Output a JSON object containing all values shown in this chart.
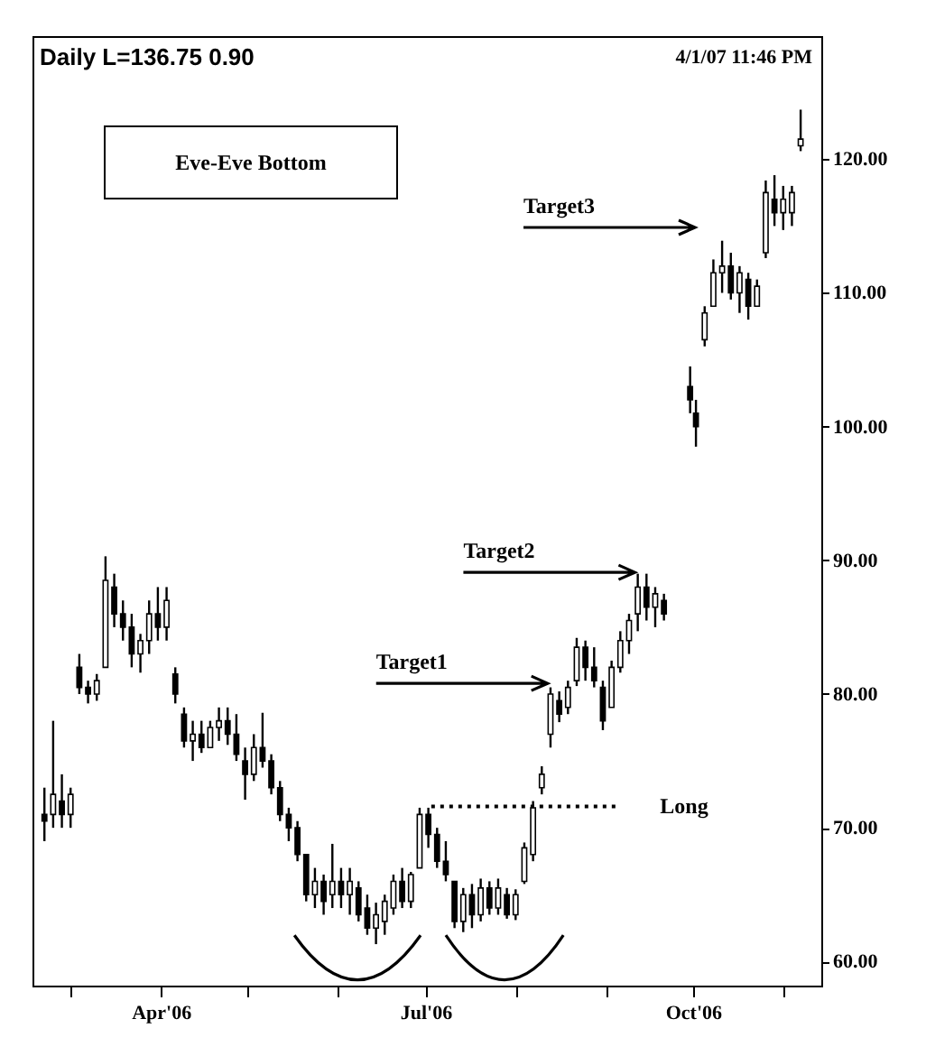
{
  "chart_data": {
    "type": "candlestick",
    "title": "Daily  L=136.75  0.90",
    "color": "#000000",
    "annotations": [
      "4/1/07 11:46 PM",
      "Eve-Eve Bottom",
      {
        "text": "Target1",
        "x": "2006-08-12",
        "y": 80.8
      },
      {
        "text": "Target2",
        "x": "2006-09-11",
        "y": 89.1
      },
      "Target3"
    ],
    "x": [
      "2006-02-20",
      "2006-02-23",
      "2006-02-26",
      "2006-03-01",
      "2006-03-04",
      "2006-03-07",
      "2006-03-10",
      "2006-03-13",
      "2006-03-16",
      "2006-03-19",
      "2006-03-22",
      "2006-03-25",
      "2006-03-28",
      "2006-03-31",
      "2006-04-03",
      "2006-04-06",
      "2006-04-09",
      "2006-04-12",
      "2006-04-15",
      "2006-04-18",
      "2006-04-21",
      "2006-04-24",
      "2006-04-27",
      "2006-04-30",
      "2006-05-03",
      "2006-05-06",
      "2006-05-09",
      "2006-05-12",
      "2006-05-15",
      "2006-05-18",
      "2006-05-21",
      "2006-05-24",
      "2006-05-27",
      "2006-05-30",
      "2006-06-02",
      "2006-06-05",
      "2006-06-08",
      "2006-06-11",
      "2006-06-14",
      "2006-06-17",
      "2006-06-20",
      "2006-06-23",
      "2006-06-26",
      "2006-06-29",
      "2006-07-02",
      "2006-07-05",
      "2006-07-08",
      "2006-07-11",
      "2006-07-14",
      "2006-07-17",
      "2006-07-20",
      "2006-07-23",
      "2006-07-26",
      "2006-07-29",
      "2006-08-01",
      "2006-08-04",
      "2006-08-07",
      "2006-08-10",
      "2006-08-13",
      "2006-08-16",
      "2006-08-19",
      "2006-08-22",
      "2006-08-25",
      "2006-08-28",
      "2006-08-31",
      "2006-09-03",
      "2006-09-06",
      "2006-09-09",
      "2006-09-12",
      "2006-09-15",
      "2006-09-18",
      "2006-09-21",
      "2006-09-30",
      "2006-10-02",
      "2006-10-05",
      "2006-10-08",
      "2006-10-11",
      "2006-10-14",
      "2006-10-17",
      "2006-10-20",
      "2006-10-23",
      "2006-10-26",
      "2006-10-29",
      "2006-11-01",
      "2006-11-04",
      "2006-11-07"
    ],
    "ohlc": [
      [
        71,
        73,
        69,
        70.5
      ],
      [
        71,
        78,
        70,
        72.5
      ],
      [
        72,
        74,
        70,
        71
      ],
      [
        71,
        73,
        70,
        72.5
      ],
      [
        82,
        83,
        80,
        80.5
      ],
      [
        80.5,
        81,
        79.3,
        80
      ],
      [
        80,
        81.5,
        79.5,
        81
      ],
      [
        82,
        90.3,
        82,
        88.5
      ],
      [
        88,
        89,
        85,
        86
      ],
      [
        86,
        87,
        84,
        85
      ],
      [
        85,
        86,
        82,
        83
      ],
      [
        83,
        84.5,
        81.6,
        84
      ],
      [
        84,
        87,
        83,
        86
      ],
      [
        86,
        88,
        84,
        85
      ],
      [
        85,
        88,
        84,
        87
      ],
      [
        81.5,
        82,
        79.3,
        80
      ],
      [
        78.5,
        79,
        76,
        76.5
      ],
      [
        76.5,
        78,
        75,
        77
      ],
      [
        77,
        78,
        75.6,
        76
      ],
      [
        76,
        78,
        76,
        77.5
      ],
      [
        77.5,
        79,
        76.5,
        78
      ],
      [
        78,
        79,
        76.2,
        77
      ],
      [
        77,
        78.5,
        75,
        75.5
      ],
      [
        75,
        76,
        72.1,
        74
      ],
      [
        74,
        77,
        73.5,
        76
      ],
      [
        76,
        78.6,
        74.5,
        75
      ],
      [
        75,
        75.5,
        72.5,
        73
      ],
      [
        73,
        73.5,
        70.5,
        71
      ],
      [
        71,
        71.5,
        69,
        70
      ],
      [
        70,
        70.5,
        67.5,
        68
      ],
      [
        68,
        68,
        64.5,
        65
      ],
      [
        65,
        67,
        64,
        66
      ],
      [
        66,
        66.5,
        63.5,
        64.5
      ],
      [
        65,
        68.8,
        64,
        66
      ],
      [
        66,
        67,
        64,
        65
      ],
      [
        65,
        67,
        63.5,
        66
      ],
      [
        65.5,
        66,
        63,
        63.5
      ],
      [
        64,
        65,
        62,
        62.5
      ],
      [
        62.5,
        64.4,
        61.3,
        63.5
      ],
      [
        63,
        65,
        62,
        64.5
      ],
      [
        64,
        66.5,
        63.5,
        66
      ],
      [
        66,
        67,
        64,
        64.5
      ],
      [
        64.5,
        66.7,
        64,
        66.5
      ],
      [
        67,
        71.5,
        67,
        71
      ],
      [
        71,
        71.5,
        68.5,
        69.5
      ],
      [
        69.5,
        70,
        67,
        67.5
      ],
      [
        67.5,
        69,
        66,
        66.5
      ],
      [
        66,
        66,
        62.5,
        63
      ],
      [
        63,
        65.5,
        62.2,
        65
      ],
      [
        65,
        65.8,
        62.5,
        63.5
      ],
      [
        63.5,
        66.2,
        63,
        65.5
      ],
      [
        65.5,
        66,
        63.5,
        64
      ],
      [
        64,
        66.2,
        63.5,
        65.5
      ],
      [
        65,
        65.5,
        63.2,
        63.5
      ],
      [
        63.5,
        65.4,
        63.1,
        65
      ],
      [
        66,
        68.9,
        65.8,
        68.5
      ],
      [
        68,
        72,
        67.5,
        71.5
      ],
      [
        73,
        74.6,
        72.5,
        74
      ],
      [
        77,
        80.5,
        76,
        80
      ],
      [
        79.5,
        80.2,
        77.9,
        78.5
      ],
      [
        79,
        81,
        78.5,
        80.5
      ],
      [
        81,
        84.2,
        80.6,
        83.5
      ],
      [
        83.5,
        84,
        81,
        82
      ],
      [
        82,
        83.5,
        80.5,
        81
      ],
      [
        80.5,
        81,
        77.3,
        78
      ],
      [
        79,
        82.5,
        79,
        82
      ],
      [
        82,
        84.7,
        81.6,
        84
      ],
      [
        84,
        86,
        83,
        85.5
      ],
      [
        86,
        89,
        84.7,
        88
      ],
      [
        88,
        89,
        85.5,
        86.5
      ],
      [
        86.5,
        88,
        85,
        87.5
      ],
      [
        87,
        87.5,
        85.5,
        86
      ],
      [
        103,
        104.5,
        101,
        102
      ],
      [
        101,
        102,
        98.5,
        100
      ],
      [
        106.5,
        109,
        106,
        108.5
      ],
      [
        109,
        112.5,
        109,
        111.5
      ],
      [
        111.5,
        113.9,
        110,
        112
      ],
      [
        112,
        113,
        109.5,
        110
      ],
      [
        110,
        112,
        108.5,
        111.5
      ],
      [
        111,
        111.5,
        108,
        109
      ],
      [
        109,
        111,
        109,
        110.5
      ],
      [
        113,
        118.4,
        112.6,
        117.5
      ],
      [
        117,
        118.8,
        115,
        116
      ],
      [
        116,
        118,
        114.7,
        117
      ],
      [
        116,
        118,
        115,
        117.5
      ],
      [
        121,
        123.7,
        120.6,
        121.5
      ]
    ],
    "series": [
      {
        "type": "line",
        "name": "Long",
        "x": [
          "2006-07-03",
          "2006-09-06"
        ],
        "values": [
          71.6,
          71.6
        ],
        "color": "#000000",
        "line_style": "dotted"
      }
    ],
    "xlim": [
      "2006-02-19",
      "2006-11-11"
    ],
    "xticks": [
      {
        "value": "2006-03-01",
        "label": null
      },
      {
        "value": "2006-04-01",
        "label": "Apr'06"
      },
      {
        "value": "2006-05-01",
        "label": null
      },
      {
        "value": "2006-06-01",
        "label": null
      },
      {
        "value": "2006-07-01",
        "label": "Jul'06"
      },
      {
        "value": "2006-08-01",
        "label": null
      },
      {
        "value": "2006-09-01",
        "label": null
      },
      {
        "value": "2006-10-01",
        "label": "Oct'06"
      },
      {
        "value": "2006-11-01",
        "label": null
      }
    ],
    "ylim": [
      58.2,
      129.2
    ],
    "yticks": [
      {
        "value": 60,
        "label": "60.00"
      },
      {
        "value": 70,
        "label": "70.00"
      },
      {
        "value": 80,
        "label": "80.00"
      },
      {
        "value": 90,
        "label": "90.00"
      },
      {
        "value": 100,
        "label": "100.00"
      },
      {
        "value": 110,
        "label": "110.00"
      },
      {
        "value": 120,
        "label": "120.00"
      }
    ],
    "grid": false
  }
}
